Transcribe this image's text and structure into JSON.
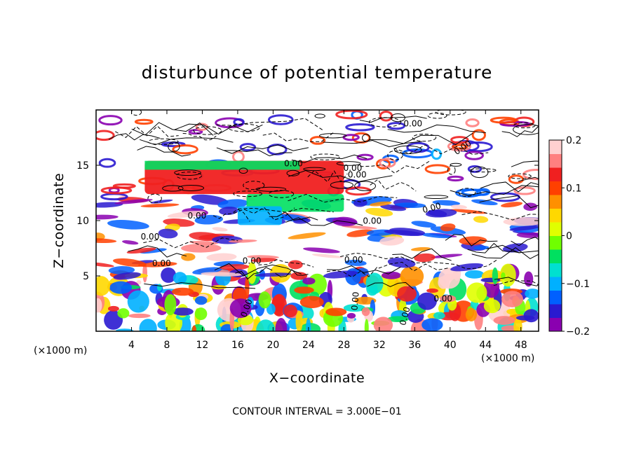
{
  "chart_data": {
    "type": "heatmap",
    "title": "disturbunce of potential temperature",
    "xlabel": "X−coordinate",
    "ylabel": "Z−coordinate",
    "x_unit_label": "(×1000 m)",
    "y_unit_label": "(×1000 m)",
    "x_range": [
      0,
      50
    ],
    "y_range": [
      0,
      20
    ],
    "x_ticks": [
      4,
      8,
      12,
      16,
      20,
      24,
      28,
      32,
      36,
      40,
      44,
      48
    ],
    "y_ticks": [
      5,
      10,
      15
    ],
    "colorbar": {
      "range": [
        -0.2,
        0.2
      ],
      "tick_values": [
        0.2,
        0.1,
        0,
        -0.1,
        -0.2
      ],
      "tick_labels": [
        "0.2",
        "0.1",
        "0",
        "−0.1",
        "−0.2"
      ],
      "colors": [
        "#8a00b0",
        "#2a1ad0",
        "#0060ff",
        "#00b0ff",
        "#00e0d0",
        "#00e060",
        "#70ff00",
        "#e0ff00",
        "#ffd800",
        "#ff9000",
        "#ff4000",
        "#f02020",
        "#ff8080",
        "#ffd0d0"
      ]
    },
    "contour_labels": [
      "0.00",
      "0.00",
      "0.00",
      "0.00",
      "0.00",
      "0.00",
      "0.00",
      "0.00",
      "0.00",
      "0.00",
      "0.00",
      "0.00",
      "0.00",
      "0.00",
      "0.00",
      "0.00"
    ],
    "footer": "CONTOUR INTERVAL = 3.000E−01"
  }
}
